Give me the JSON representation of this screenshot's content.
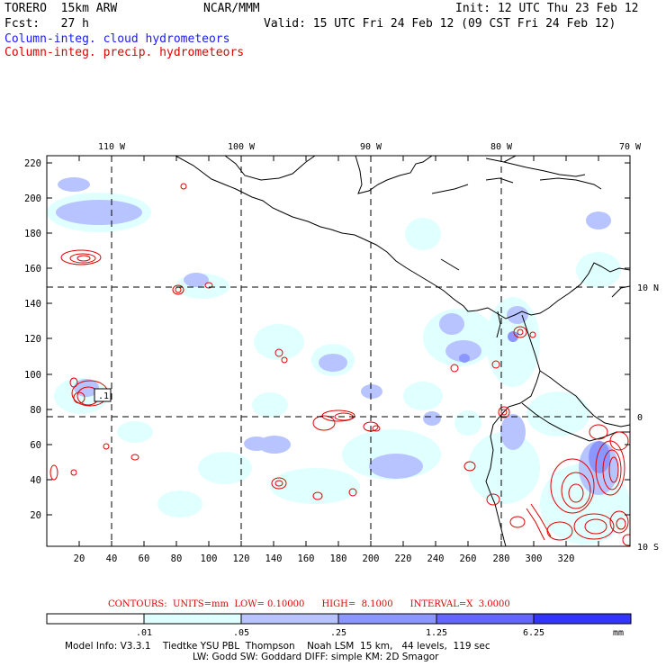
{
  "header": {
    "model": "TORERO  15km ARW",
    "org": "NCAR/MMM",
    "init": "Init: 12 UTC Thu 23 Feb 12",
    "fcst": "Fcst:   27 h",
    "valid": "Valid: 15 UTC Fri 24 Feb 12 (09 CST Fri 24 Feb 12)",
    "legend_cloud": "Column-integ. cloud hydrometeors",
    "legend_precip": "Column-integ. precip. hydrometeors"
  },
  "colors": {
    "cloud": "#1a1aff",
    "precip": "#e00000",
    "bin1": "#e0ffff",
    "bin2": "#b8c4ff",
    "bin3": "#8c96ff",
    "bin4": "#6464ff",
    "bin5": "#3434ff"
  },
  "map": {
    "lon_labels": [
      "110 W",
      "100 W",
      "90 W",
      "80 W",
      "70 W"
    ],
    "lat_labels": [
      "10 N",
      "0",
      "10 S"
    ],
    "y_ticks": [
      "220",
      "200",
      "180",
      "160",
      "140",
      "120",
      "100",
      "80",
      "60",
      "40",
      "20"
    ],
    "x_ticks": [
      "20",
      "40",
      "60",
      "80",
      "100",
      "120",
      "140",
      "160",
      "180",
      "200",
      "220",
      "240",
      "260",
      "280",
      "300",
      "320"
    ],
    "box_label": ".1"
  },
  "contours": {
    "text": "CONTOURS:  UNITS=mm  LOW= 0.10000      HIGH=  8.1000      INTERVAL=X  3.0000"
  },
  "colorbar": {
    "labels": [
      ".01",
      ".05",
      ".25",
      "1.25",
      "6.25"
    ],
    "unit": "mm"
  },
  "footer": {
    "line1": "Model Info: V3.3.1    Tiedtke YSU PBL  Thompson    Noah LSM  15 km,   44 levels,  119 sec",
    "line2": "LW: Godd SW: Goddard DIFF: simple KM: 2D Smagor"
  }
}
